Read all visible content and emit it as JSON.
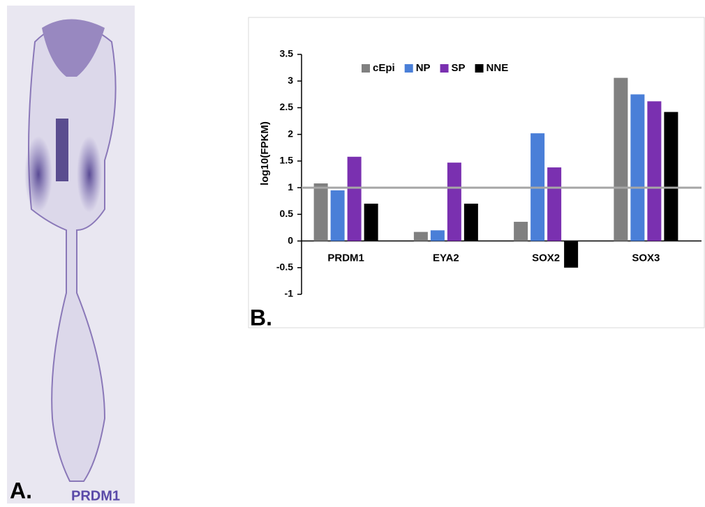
{
  "panel_a": {
    "label": "A.",
    "gene": "PRDM1"
  },
  "chart_data": {
    "type": "bar",
    "panel_label": "B.",
    "y_label": "log10(FPKM)",
    "categories": [
      "PRDM1",
      "EYA2",
      "SOX2",
      "SOX3"
    ],
    "series": [
      {
        "name": "cEpi",
        "color": "#808080",
        "values": [
          1.08,
          0.17,
          0.36,
          3.06
        ]
      },
      {
        "name": "NP",
        "color": "#4a7fd8",
        "values": [
          0.95,
          0.2,
          2.02,
          2.75
        ]
      },
      {
        "name": "SP",
        "color": "#7a30b0",
        "values": [
          1.58,
          1.47,
          1.38,
          2.62
        ]
      },
      {
        "name": "NNE",
        "color": "#000000",
        "values": [
          0.7,
          0.7,
          -0.5,
          2.42
        ]
      }
    ],
    "ylim": [
      -1,
      3.5
    ],
    "yticks": [
      -1,
      -0.5,
      0,
      0.5,
      1,
      1.5,
      2,
      2.5,
      3,
      3.5
    ],
    "reference_line": 1,
    "legend": "top-left"
  }
}
